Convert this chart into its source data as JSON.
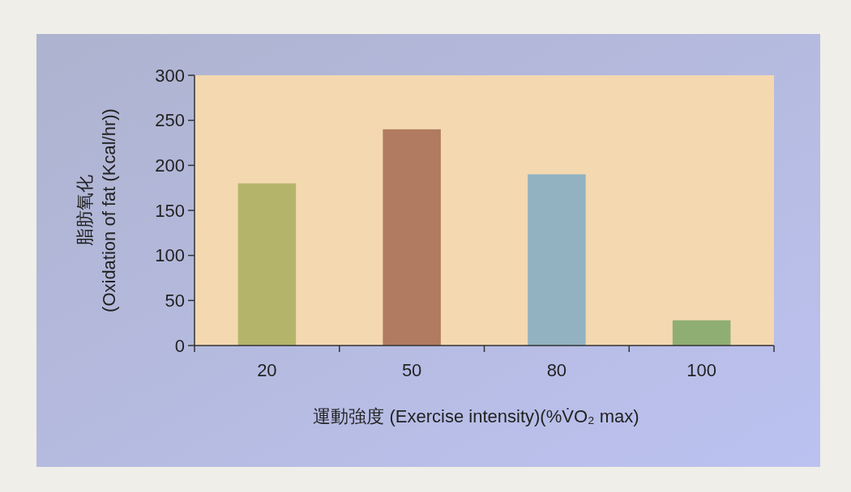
{
  "chart_data": {
    "type": "bar",
    "categories": [
      "20",
      "50",
      "80",
      "100"
    ],
    "values": [
      180,
      240,
      190,
      28
    ],
    "colors": [
      "#b4b56b",
      "#b07b60",
      "#92b2c2",
      "#8fae74"
    ],
    "ylim": [
      0,
      300
    ],
    "yticks": [
      0,
      50,
      100,
      150,
      200,
      250,
      300
    ],
    "xlabel": "運動強度 (Exercise intensity)(%V̇O₂ max)",
    "ylabel": "脂肪氧化\n(Oxidation of fat (Kcal/hr))",
    "grid": false
  }
}
